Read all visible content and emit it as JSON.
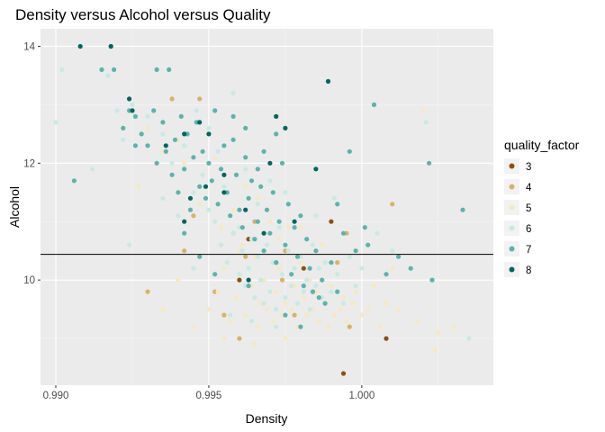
{
  "chart_data": {
    "type": "scatter",
    "title": "Density versus Alcohol versus Quality",
    "xlabel": "Density",
    "ylabel": "Alcohol",
    "xlim": [
      0.9895,
      1.0043
    ],
    "ylim": [
      8.2,
      14.3
    ],
    "x_ticks": [
      0.99,
      0.995,
      1.0
    ],
    "x_tick_labels": [
      "0.990",
      "0.995",
      "1.000"
    ],
    "y_ticks": [
      10,
      12,
      14
    ],
    "y_tick_labels": [
      "10",
      "12",
      "14"
    ],
    "hline": 10.44,
    "grid": true,
    "legend": {
      "title": "quality_factor",
      "placement": "right"
    },
    "colors": {
      "3": "#8c510a",
      "4": "#d8b365",
      "5": "#f6e8c3",
      "6": "#c7eae5",
      "7": "#5ab4ac",
      "8": "#01665e",
      "panel": "#ebebeb",
      "grid_major": "#ffffff",
      "hline": "#000000"
    },
    "series": [
      {
        "name": "3",
        "points": [
          [
            0.9994,
            8.4
          ],
          [
            1.0008,
            9.0
          ],
          [
            0.996,
            10.0
          ],
          [
            0.999,
            11.0
          ],
          [
            0.9981,
            10.2
          ],
          [
            0.9963,
            10.7
          ],
          [
            0.9972,
            10.3
          ]
        ]
      },
      {
        "name": "4",
        "points": [
          [
            0.9947,
            13.1
          ],
          [
            0.9938,
            13.1
          ],
          [
            0.9995,
            10.8
          ],
          [
            1.001,
            11.3
          ],
          [
            0.9974,
            10.0
          ],
          [
            0.9955,
            9.4
          ],
          [
            0.996,
            9.0
          ],
          [
            0.9984,
            9.8
          ],
          [
            0.9942,
            10.5
          ],
          [
            0.9958,
            10.8
          ],
          [
            0.9965,
            11.0
          ],
          [
            0.9992,
            10.3
          ],
          [
            0.993,
            9.8
          ],
          [
            0.9975,
            10.5
          ],
          [
            0.9988,
            9.6
          ],
          [
            0.9962,
            10.4
          ],
          [
            0.9952,
            9.8
          ],
          [
            0.9978,
            9.4
          ],
          [
            0.9996,
            9.2
          ],
          [
            0.9945,
            11.1
          ]
        ]
      },
      {
        "name": "5",
        "points": [
          [
            0.9935,
            9.5
          ],
          [
            0.994,
            10.0
          ],
          [
            0.9945,
            9.2
          ],
          [
            0.995,
            9.5
          ],
          [
            0.9953,
            9.8
          ],
          [
            0.9955,
            10.2
          ],
          [
            0.9957,
            9.3
          ],
          [
            0.9959,
            9.7
          ],
          [
            0.996,
            10.5
          ],
          [
            0.9962,
            9.4
          ],
          [
            0.9964,
            9.9
          ],
          [
            0.9965,
            10.4
          ],
          [
            0.9966,
            9.2
          ],
          [
            0.9967,
            9.6
          ],
          [
            0.9968,
            10.0
          ],
          [
            0.9969,
            9.5
          ],
          [
            0.997,
            10.8
          ],
          [
            0.9971,
            9.3
          ],
          [
            0.9972,
            9.8
          ],
          [
            0.9973,
            10.2
          ],
          [
            0.9974,
            9.4
          ],
          [
            0.9975,
            9.6
          ],
          [
            0.9976,
            10.9
          ],
          [
            0.9977,
            9.5
          ],
          [
            0.9978,
            9.9
          ],
          [
            0.9979,
            9.2
          ],
          [
            0.998,
            10.3
          ],
          [
            0.9981,
            9.7
          ],
          [
            0.9982,
            9.4
          ],
          [
            0.9983,
            10.0
          ],
          [
            0.9984,
            9.5
          ],
          [
            0.9985,
            9.8
          ],
          [
            0.9986,
            9.3
          ],
          [
            0.9987,
            10.6
          ],
          [
            0.9988,
            9.6
          ],
          [
            0.9989,
            9.2
          ],
          [
            0.999,
            9.9
          ],
          [
            0.9991,
            9.4
          ],
          [
            0.9992,
            10.1
          ],
          [
            0.9993,
            9.5
          ],
          [
            0.9994,
            9.7
          ],
          [
            0.9995,
            9.3
          ],
          [
            0.9996,
            10.4
          ],
          [
            0.9997,
            9.6
          ],
          [
            0.9998,
            9.8
          ],
          [
            1.0,
            9.4
          ],
          [
            1.0002,
            9.5
          ],
          [
            1.0004,
            9.9
          ],
          [
            1.0006,
            9.2
          ],
          [
            1.0008,
            9.6
          ],
          [
            1.0012,
            9.5
          ],
          [
            1.0018,
            9.3
          ],
          [
            1.0025,
            9.1
          ],
          [
            1.003,
            9.2
          ],
          [
            1.0024,
            8.8
          ],
          [
            0.9958,
            11.2
          ],
          [
            0.9962,
            11.6
          ],
          [
            0.9948,
            11.8
          ],
          [
            0.9942,
            12.0
          ],
          [
            0.9966,
            11.4
          ],
          [
            0.997,
            11.0
          ],
          [
            0.9954,
            10.9
          ],
          [
            0.994,
            12.4
          ],
          [
            0.9935,
            12.2
          ],
          [
            0.993,
            12.6
          ],
          [
            0.9952,
            12.1
          ],
          [
            0.9961,
            10.6
          ],
          [
            0.9973,
            10.7
          ],
          [
            0.998,
            10.9
          ],
          [
            0.9955,
            9.0
          ],
          [
            0.9965,
            8.9
          ],
          [
            0.9975,
            9.0
          ],
          [
            1.001,
            10.2
          ],
          [
            1.002,
            12.9
          ],
          [
            0.9927,
            11.6
          ],
          [
            0.9947,
            11.3
          ]
        ]
      },
      {
        "name": "6",
        "points": [
          [
            0.99,
            12.7
          ],
          [
            0.9902,
            13.6
          ],
          [
            0.9917,
            13.5
          ],
          [
            0.992,
            12.9
          ],
          [
            0.9925,
            13.0
          ],
          [
            0.9912,
            11.9
          ],
          [
            0.9922,
            12.4
          ],
          [
            0.993,
            12.8
          ],
          [
            0.9935,
            12.5
          ],
          [
            0.9938,
            12.0
          ],
          [
            0.9942,
            12.3
          ],
          [
            0.9945,
            11.5
          ],
          [
            0.9948,
            11.8
          ],
          [
            0.995,
            11.2
          ],
          [
            0.9952,
            11.0
          ],
          [
            0.9954,
            10.6
          ],
          [
            0.9956,
            10.3
          ],
          [
            0.9958,
            10.8
          ],
          [
            0.996,
            10.1
          ],
          [
            0.9961,
            10.5
          ],
          [
            0.9962,
            9.9
          ],
          [
            0.9963,
            10.2
          ],
          [
            0.9964,
            10.7
          ],
          [
            0.9965,
            9.7
          ],
          [
            0.9966,
            10.4
          ],
          [
            0.9967,
            10.0
          ],
          [
            0.9968,
            9.6
          ],
          [
            0.9969,
            10.6
          ],
          [
            0.997,
            9.8
          ],
          [
            0.9971,
            10.3
          ],
          [
            0.9972,
            9.5
          ],
          [
            0.9973,
            10.9
          ],
          [
            0.9974,
            10.1
          ],
          [
            0.9975,
            9.7
          ],
          [
            0.9976,
            10.5
          ],
          [
            0.9977,
            9.9
          ],
          [
            0.9978,
            10.2
          ],
          [
            0.9979,
            9.6
          ],
          [
            0.998,
            10.4
          ],
          [
            0.9981,
            9.8
          ],
          [
            0.9982,
            10.0
          ],
          [
            0.9983,
            9.5
          ],
          [
            0.9984,
            10.6
          ],
          [
            0.9985,
            9.9
          ],
          [
            0.9986,
            10.2
          ],
          [
            0.9987,
            9.7
          ],
          [
            0.9988,
            10.3
          ],
          [
            0.999,
            9.8
          ],
          [
            0.9992,
            10.1
          ],
          [
            0.9994,
            9.6
          ],
          [
            0.9996,
            10.4
          ],
          [
            0.9998,
            9.9
          ],
          [
            1.0,
            10.2
          ],
          [
            1.0005,
            10.8
          ],
          [
            1.001,
            10.5
          ],
          [
            1.0021,
            12.7
          ],
          [
            1.0035,
            9.0
          ],
          [
            0.9958,
            13.2
          ],
          [
            0.9955,
            11.6
          ],
          [
            0.995,
            12.6
          ],
          [
            0.9966,
            11.3
          ],
          [
            0.994,
            11.1
          ],
          [
            0.9935,
            11.4
          ],
          [
            0.997,
            11.7
          ],
          [
            0.996,
            10.9
          ],
          [
            0.9962,
            11.9
          ],
          [
            0.9953,
            12.2
          ],
          [
            0.9946,
            12.9
          ],
          [
            0.9975,
            11.5
          ],
          [
            0.9985,
            11.1
          ],
          [
            0.9991,
            11.4
          ],
          [
            0.9957,
            9.4
          ],
          [
            0.9964,
            9.3
          ],
          [
            0.9972,
            9.2
          ],
          [
            0.9945,
            10.2
          ],
          [
            0.9924,
            10.6
          ]
        ]
      },
      {
        "name": "7",
        "points": [
          [
            0.9906,
            11.7
          ],
          [
            0.9915,
            13.6
          ],
          [
            0.9918,
            14.0
          ],
          [
            0.9919,
            13.6
          ],
          [
            0.9922,
            12.6
          ],
          [
            0.9924,
            12.9
          ],
          [
            0.9926,
            12.8
          ],
          [
            0.9928,
            12.5
          ],
          [
            0.993,
            12.3
          ],
          [
            0.9932,
            12.9
          ],
          [
            0.9933,
            12.0
          ],
          [
            0.9935,
            12.7
          ],
          [
            0.9936,
            12.2
          ],
          [
            0.9937,
            13.6
          ],
          [
            0.9938,
            11.8
          ],
          [
            0.9939,
            12.4
          ],
          [
            0.994,
            11.5
          ],
          [
            0.9941,
            12.8
          ],
          [
            0.9942,
            11.9
          ],
          [
            0.9943,
            12.5
          ],
          [
            0.9944,
            11.2
          ],
          [
            0.9945,
            12.1
          ],
          [
            0.9946,
            12.7
          ],
          [
            0.9947,
            11.6
          ],
          [
            0.9948,
            12.2
          ],
          [
            0.9949,
            11.4
          ],
          [
            0.995,
            12.0
          ],
          [
            0.9951,
            11.7
          ],
          [
            0.9952,
            12.9
          ],
          [
            0.9953,
            11.3
          ],
          [
            0.9954,
            11.9
          ],
          [
            0.9955,
            12.3
          ],
          [
            0.9956,
            11.5
          ],
          [
            0.9957,
            11.1
          ],
          [
            0.9958,
            12.4
          ],
          [
            0.9959,
            11.8
          ],
          [
            0.996,
            11.2
          ],
          [
            0.9961,
            10.9
          ],
          [
            0.9962,
            12.1
          ],
          [
            0.9963,
            11.4
          ],
          [
            0.9964,
            11.7
          ],
          [
            0.9965,
            10.7
          ],
          [
            0.9966,
            11.0
          ],
          [
            0.9967,
            11.6
          ],
          [
            0.9968,
            10.5
          ],
          [
            0.9969,
            11.2
          ],
          [
            0.997,
            10.8
          ],
          [
            0.9971,
            11.5
          ],
          [
            0.9972,
            10.3
          ],
          [
            0.9973,
            11.0
          ],
          [
            0.9974,
            12.0
          ],
          [
            0.9975,
            10.6
          ],
          [
            0.9976,
            11.3
          ],
          [
            0.9977,
            10.1
          ],
          [
            0.9978,
            10.9
          ],
          [
            0.9979,
            10.4
          ],
          [
            0.998,
            11.1
          ],
          [
            0.9981,
            9.9
          ],
          [
            0.9982,
            10.7
          ],
          [
            0.9983,
            10.2
          ],
          [
            0.9984,
            9.8
          ],
          [
            0.9985,
            10.5
          ],
          [
            0.9986,
            9.7
          ],
          [
            0.9987,
            10.0
          ],
          [
            0.9988,
            9.6
          ],
          [
            0.999,
            10.3
          ],
          [
            0.9992,
            9.8
          ],
          [
            0.9994,
            10.8
          ],
          [
            0.9996,
            12.2
          ],
          [
            0.9998,
            10.5
          ],
          [
            1.0001,
            10.9
          ],
          [
            1.0004,
            13.0
          ],
          [
            1.0008,
            10.1
          ],
          [
            1.0012,
            10.4
          ],
          [
            1.0016,
            10.2
          ],
          [
            1.0022,
            12.0
          ],
          [
            1.0023,
            10.0
          ],
          [
            1.0033,
            11.2
          ],
          [
            0.9958,
            12.8
          ],
          [
            0.9962,
            12.6
          ],
          [
            0.9968,
            12.2
          ],
          [
            0.9972,
            12.5
          ],
          [
            0.9966,
            11.9
          ],
          [
            0.9933,
            13.6
          ],
          [
            0.9926,
            12.3
          ],
          [
            0.9942,
            10.8
          ],
          [
            0.9947,
            10.4
          ],
          [
            0.9952,
            10.1
          ],
          [
            0.9975,
            9.4
          ],
          [
            0.998,
            9.2
          ],
          [
            0.9963,
            9.9
          ],
          [
            0.9992,
            11.3
          ],
          [
            1.0002,
            10.6
          ]
        ]
      },
      {
        "name": "8",
        "points": [
          [
            0.9908,
            14.0
          ],
          [
            0.9918,
            14.0
          ],
          [
            0.9924,
            13.1
          ],
          [
            0.9925,
            12.9
          ],
          [
            0.9936,
            12.3
          ],
          [
            0.9942,
            12.5
          ],
          [
            0.9944,
            11.4
          ],
          [
            0.9947,
            12.7
          ],
          [
            0.995,
            12.5
          ],
          [
            0.9955,
            11.5
          ],
          [
            0.9962,
            11.2
          ],
          [
            0.9968,
            10.8
          ],
          [
            0.997,
            12.0
          ],
          [
            0.9972,
            12.8
          ],
          [
            0.9975,
            12.6
          ],
          [
            0.9985,
            11.9
          ],
          [
            0.9989,
            13.4
          ],
          [
            0.9978,
            11.0
          ],
          [
            0.9955,
            11.8
          ],
          [
            0.9942,
            11.0
          ],
          [
            0.9963,
            10.0
          ],
          [
            0.9949,
            11.6
          ]
        ]
      }
    ]
  }
}
